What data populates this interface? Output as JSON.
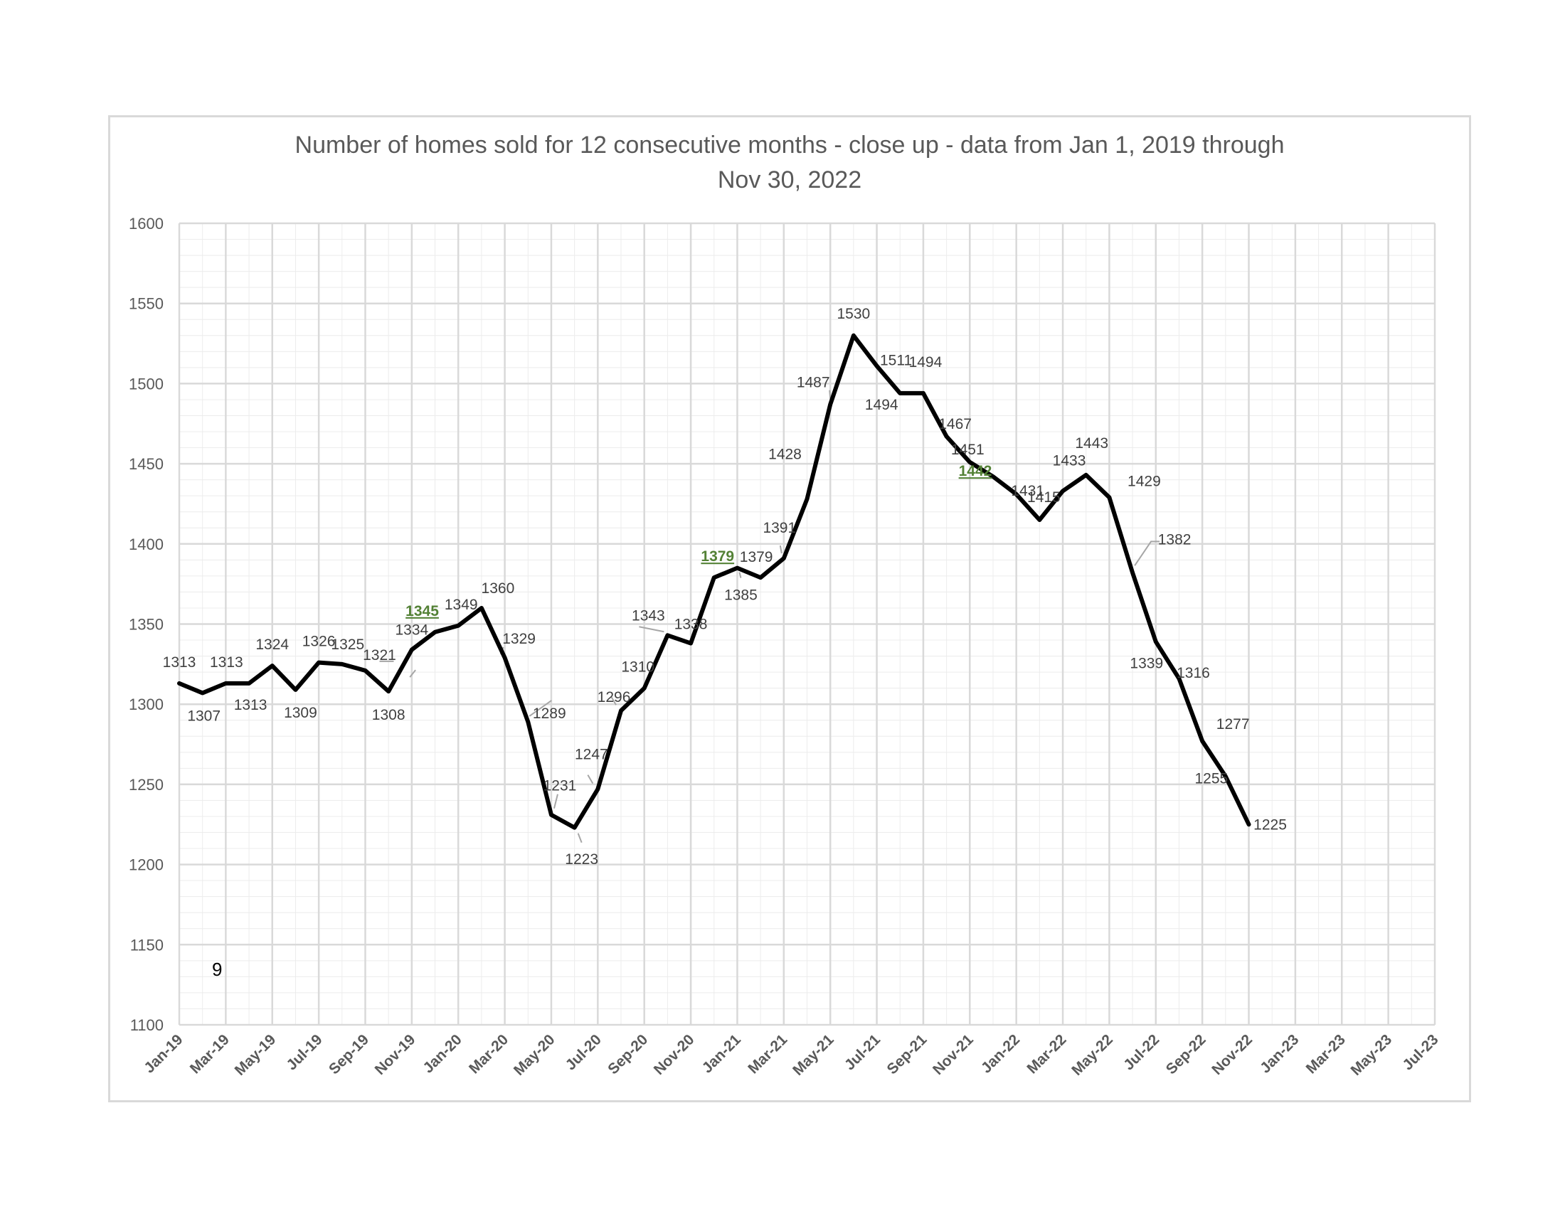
{
  "title": "Number of homes sold for 12 consecutive months - close up - data from Jan 1, 2019 through\nNov 30, 2022",
  "page_number": "9",
  "colors": {
    "line": "#000000",
    "grid_major": "#d9d9d9",
    "grid_minor": "#ececec",
    "label": "#404040",
    "highlight_label": "#538135",
    "leader": "#a6a6a6"
  },
  "chart_data": {
    "type": "line",
    "title": "Number of homes sold for 12 consecutive months - close up - data from Jan 1, 2019 through Nov 30, 2022",
    "xlabel": "",
    "ylabel": "",
    "ylim": [
      1100,
      1600
    ],
    "y_ticks": [
      1100,
      1150,
      1200,
      1250,
      1300,
      1350,
      1400,
      1450,
      1500,
      1550,
      1600
    ],
    "x_range": [
      "2019-01",
      "2023-07"
    ],
    "x_ticks": [
      "Jan-19",
      "Mar-19",
      "May-19",
      "Jul-19",
      "Sep-19",
      "Nov-19",
      "Jan-20",
      "Mar-20",
      "May-20",
      "Jul-20",
      "Sep-20",
      "Nov-20",
      "Jan-21",
      "Mar-21",
      "May-21",
      "Jul-21",
      "Sep-21",
      "Nov-21",
      "Jan-22",
      "Mar-22",
      "May-22",
      "Jul-22",
      "Sep-22",
      "Nov-22",
      "Jan-23",
      "Mar-23",
      "May-23",
      "Jul-23"
    ],
    "grid": "on",
    "legend": "none",
    "series": [
      {
        "x": [
          "2019-01",
          "2019-02",
          "2019-03",
          "2019-04",
          "2019-05",
          "2019-06",
          "2019-07",
          "2019-08",
          "2019-09",
          "2019-10",
          "2019-11",
          "2019-12",
          "2020-01",
          "2020-02",
          "2020-03",
          "2020-04",
          "2020-05",
          "2020-06",
          "2020-07",
          "2020-08",
          "2020-09",
          "2020-10",
          "2020-11",
          "2020-12",
          "2021-01",
          "2021-02",
          "2021-03",
          "2021-04",
          "2021-05",
          "2021-06",
          "2021-07",
          "2021-08",
          "2021-09",
          "2021-10",
          "2021-11",
          "2021-12",
          "2022-01",
          "2022-02",
          "2022-03",
          "2022-04",
          "2022-05",
          "2022-06",
          "2022-07",
          "2022-08",
          "2022-09",
          "2022-10",
          "2022-11"
        ],
        "values": [
          1313,
          1307,
          1313,
          1313,
          1324,
          1309,
          1326,
          1325,
          1321,
          1308,
          1334,
          1345,
          1349,
          1360,
          1329,
          1289,
          1231,
          1223,
          1247,
          1296,
          1310,
          1343,
          1338,
          1379,
          1385,
          1379,
          1391,
          1428,
          1487,
          1530,
          1511,
          1494,
          1494,
          1467,
          1451,
          1442,
          1431,
          1415,
          1433,
          1443,
          1429,
          1382,
          1339,
          1316,
          1277,
          1255,
          1225
        ],
        "highlighted": [
          11,
          23,
          35
        ]
      }
    ]
  }
}
